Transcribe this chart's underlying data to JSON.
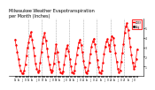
{
  "title": "Milwaukee Weather Evapotranspiration\nper Month (Inches)",
  "title_fontsize": 3.5,
  "background_color": "#ffffff",
  "line_color_red": "#ff0000",
  "line_color_black": "#000000",
  "years": [
    2015,
    2016,
    2017,
    2018,
    2019,
    2020,
    2021,
    2022,
    2023
  ],
  "months_per_year": 12,
  "et_values": [
    3.8,
    3.2,
    2.5,
    1.8,
    1.1,
    0.6,
    0.3,
    0.25,
    0.55,
    1.2,
    2.1,
    3.0,
    3.5,
    4.2,
    4.6,
    3.8,
    3.0,
    2.1,
    1.3,
    0.8,
    0.4,
    0.6,
    1.4,
    2.5,
    3.4,
    4.1,
    4.5,
    3.7,
    2.9,
    2.0,
    1.2,
    0.7,
    0.35,
    0.55,
    1.35,
    2.4,
    3.3,
    2.5,
    1.5,
    0.8,
    0.35,
    0.25,
    0.5,
    1.2,
    2.1,
    2.9,
    3.2,
    2.6,
    1.8,
    1.0,
    0.4,
    0.3,
    0.55,
    1.3,
    2.2,
    3.0,
    3.5,
    3.8,
    3.2,
    2.5,
    1.6,
    0.9,
    0.4,
    0.3,
    0.6,
    1.4,
    2.3,
    3.1,
    3.6,
    3.9,
    3.3,
    2.6,
    1.7,
    0.95,
    0.42,
    0.32,
    0.58,
    1.38,
    2.28,
    3.08,
    3.58,
    3.88,
    3.28,
    2.58,
    3.8,
    4.2,
    4.0,
    3.2,
    2.4,
    1.5,
    0.8,
    0.4,
    0.6,
    1.5,
    2.4,
    3.3,
    4.5,
    5.2,
    5.5,
    4.8,
    4.0,
    3.1,
    2.2,
    1.4,
    0.8,
    1.0,
    1.8,
    2.8
  ],
  "avg_values": [
    3.9,
    3.3,
    2.6,
    1.9,
    1.15,
    0.65,
    0.32,
    0.27,
    0.58,
    1.25,
    2.15,
    3.05,
    3.55,
    4.25,
    4.65,
    3.85,
    3.05,
    2.15,
    1.35,
    0.85,
    0.45,
    0.65,
    1.45,
    2.55,
    3.45,
    4.15,
    4.55,
    3.75,
    2.95,
    2.05,
    1.25,
    0.75,
    0.4,
    0.6,
    1.4,
    2.45,
    3.35,
    2.55,
    1.55,
    0.85,
    0.4,
    0.3,
    0.55,
    1.25,
    2.15,
    2.95,
    3.25,
    2.65,
    1.85,
    1.05,
    0.45,
    0.35,
    0.6,
    1.35,
    2.25,
    3.05,
    3.55,
    3.85,
    3.25,
    2.55,
    1.65,
    0.95,
    0.45,
    0.35,
    0.65,
    1.45,
    2.35,
    3.15,
    3.65,
    3.95,
    3.35,
    2.65,
    1.75,
    1.0,
    0.47,
    0.37,
    0.63,
    1.43,
    2.33,
    3.13,
    3.63,
    3.93,
    3.33,
    2.63,
    3.85,
    4.25,
    4.05,
    3.25,
    2.45,
    1.55,
    0.85,
    0.45,
    0.65,
    1.55,
    2.45,
    3.35,
    4.55,
    5.25,
    5.55,
    4.85,
    4.05,
    3.15,
    2.25,
    1.45,
    0.85,
    1.05,
    1.85,
    2.85
  ],
  "ylim": [
    0,
    6
  ],
  "yticks": [
    1,
    2,
    3,
    4,
    5
  ],
  "month_labels": [
    "J",
    "F",
    "M",
    "A",
    "M",
    "J",
    "J",
    "A",
    "S",
    "O",
    "N",
    "D"
  ],
  "year_labels": [
    "2015",
    "2016",
    "2017",
    "2018",
    "2019",
    "2020",
    "2021",
    "2022",
    "2023"
  ],
  "marker_size": 1.5,
  "line_width": 0.0,
  "grid_color": "#888888",
  "legend_label_red": "2023",
  "legend_label_black": "Avg"
}
